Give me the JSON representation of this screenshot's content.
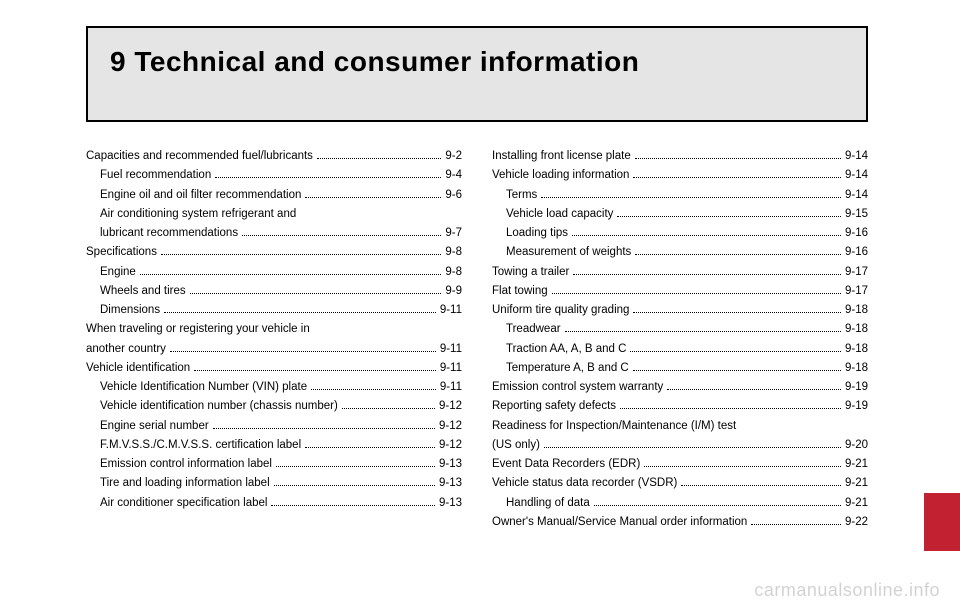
{
  "header": {
    "title": "9 Technical and consumer information"
  },
  "toc": {
    "left": [
      {
        "label": "Capacities and recommended fuel/lubricants",
        "page": "9-2",
        "sub": false
      },
      {
        "label": "Fuel recommendation",
        "page": "9-4",
        "sub": true
      },
      {
        "label": "Engine oil and oil filter recommendation",
        "page": "9-6",
        "sub": true
      },
      {
        "label": "Air conditioning system refrigerant and",
        "page": "",
        "sub": true,
        "nodots": true
      },
      {
        "label": "lubricant recommendations",
        "page": "9-7",
        "sub": true
      },
      {
        "label": "Specifications",
        "page": "9-8",
        "sub": false
      },
      {
        "label": "Engine",
        "page": "9-8",
        "sub": true
      },
      {
        "label": "Wheels and tires",
        "page": "9-9",
        "sub": true
      },
      {
        "label": "Dimensions",
        "page": "9-11",
        "sub": true
      },
      {
        "label": "When traveling or registering your vehicle in",
        "page": "",
        "sub": false,
        "nodots": true
      },
      {
        "label": "another country",
        "page": "9-11",
        "sub": false
      },
      {
        "label": "Vehicle identification",
        "page": "9-11",
        "sub": false
      },
      {
        "label": "Vehicle Identification Number (VIN) plate",
        "page": "9-11",
        "sub": true
      },
      {
        "label": "Vehicle identification number (chassis number)",
        "page": "9-12",
        "sub": true
      },
      {
        "label": "Engine serial number",
        "page": "9-12",
        "sub": true
      },
      {
        "label": "F.M.V.S.S./C.M.V.S.S. certification label",
        "page": "9-12",
        "sub": true
      },
      {
        "label": "Emission control information label",
        "page": "9-13",
        "sub": true
      },
      {
        "label": "Tire and loading information label",
        "page": "9-13",
        "sub": true
      },
      {
        "label": "Air conditioner specification label",
        "page": "9-13",
        "sub": true
      }
    ],
    "right": [
      {
        "label": "Installing front license plate",
        "page": "9-14",
        "sub": false
      },
      {
        "label": "Vehicle loading information",
        "page": "9-14",
        "sub": false
      },
      {
        "label": "Terms",
        "page": "9-14",
        "sub": true
      },
      {
        "label": "Vehicle load capacity",
        "page": "9-15",
        "sub": true
      },
      {
        "label": "Loading tips",
        "page": "9-16",
        "sub": true
      },
      {
        "label": "Measurement of weights",
        "page": "9-16",
        "sub": true
      },
      {
        "label": "Towing a trailer",
        "page": "9-17",
        "sub": false
      },
      {
        "label": "Flat towing",
        "page": "9-17",
        "sub": false
      },
      {
        "label": "Uniform tire quality grading",
        "page": "9-18",
        "sub": false
      },
      {
        "label": "Treadwear",
        "page": "9-18",
        "sub": true
      },
      {
        "label": "Traction AA, A, B and C",
        "page": "9-18",
        "sub": true
      },
      {
        "label": "Temperature A, B and C",
        "page": "9-18",
        "sub": true
      },
      {
        "label": "Emission control system warranty",
        "page": "9-19",
        "sub": false
      },
      {
        "label": "Reporting safety defects",
        "page": "9-19",
        "sub": false
      },
      {
        "label": "Readiness for Inspection/Maintenance (I/M) test",
        "page": "",
        "sub": false,
        "nodots": true
      },
      {
        "label": "(US only)",
        "page": "9-20",
        "sub": false
      },
      {
        "label": "Event Data Recorders (EDR)",
        "page": "9-21",
        "sub": false
      },
      {
        "label": "Vehicle status data recorder (VSDR)",
        "page": "9-21",
        "sub": false
      },
      {
        "label": "Handling of data",
        "page": "9-21",
        "sub": true
      },
      {
        "label": "Owner's Manual/Service Manual order information",
        "page": "9-22",
        "sub": false
      }
    ]
  },
  "colors": {
    "header_bg": "#e5e5e5",
    "tab_bg": "#c22131",
    "text": "#000000",
    "watermark": "rgba(0,0,0,0.18)"
  },
  "watermark": "carmanualsonline.info"
}
